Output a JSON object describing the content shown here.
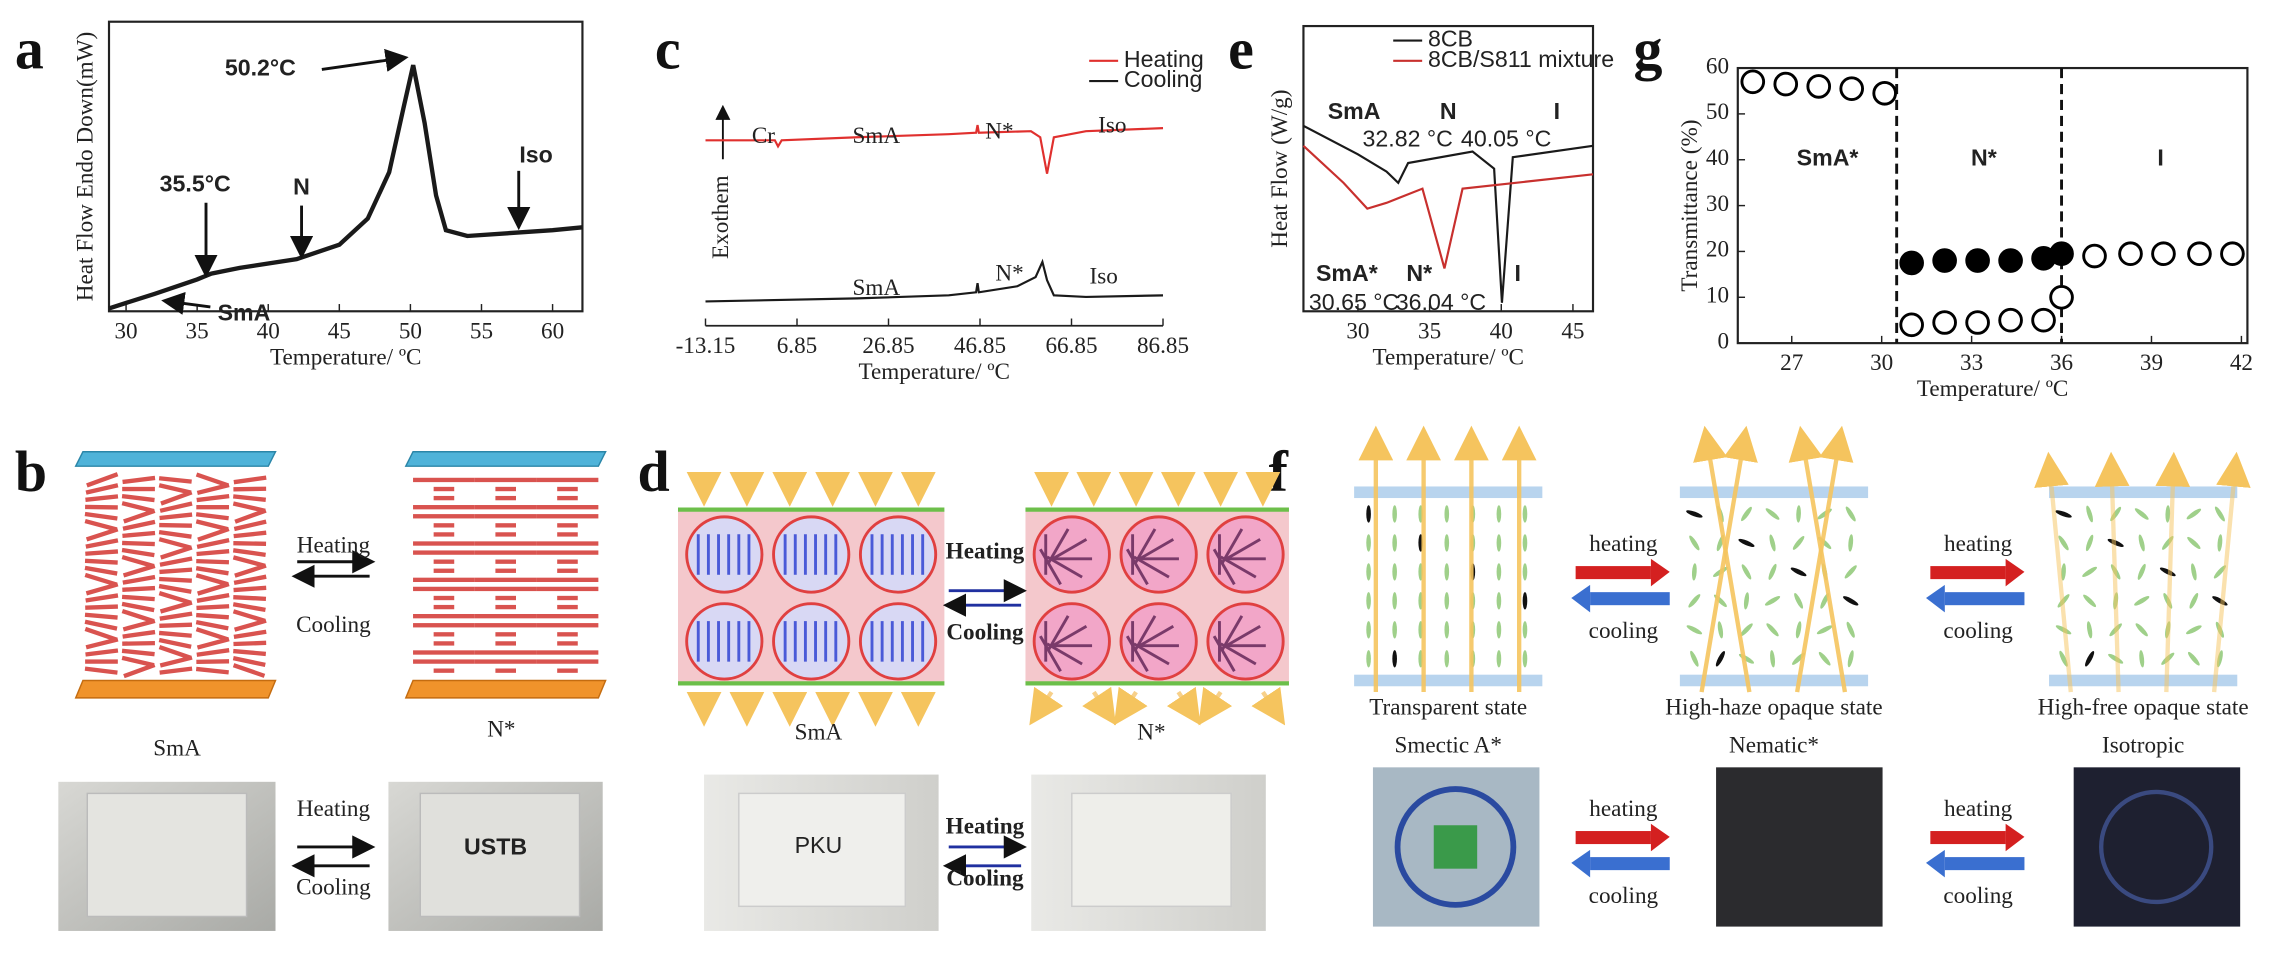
{
  "panel_labels": [
    "a",
    "b",
    "c",
    "d",
    "e",
    "f",
    "g"
  ],
  "chart_data": [
    {
      "type": "line",
      "xlabel": "Temperature/ ºC",
      "ylabel": "Heat Flow Endo Down(mW)",
      "xlim": [
        28.8,
        62.1
      ],
      "xticks": [
        30,
        35,
        40,
        45,
        50,
        55,
        60
      ],
      "ylim": [
        0,
        100
      ],
      "series": [
        {
          "color": "#1a1a1a",
          "x": [
            28.8,
            32,
            35,
            35.5,
            36,
            38,
            42,
            45,
            47,
            48.5,
            49.5,
            50.2,
            51,
            51.8,
            52.5,
            54,
            57,
            60,
            62.1
          ],
          "values": [
            1,
            6,
            11,
            12,
            13,
            15,
            18,
            23,
            32,
            48,
            70,
            85,
            65,
            40,
            28,
            26,
            27,
            28,
            29
          ]
        }
      ],
      "annotations": [
        "50.2°C",
        "35.5°C",
        "N",
        "Iso",
        "SmA"
      ]
    },
    {
      "type": "line",
      "xlabel": "Temperature/ ºC",
      "ylabel": "Exothem",
      "xlim": [
        -13.15,
        86.85
      ],
      "xticks": [
        -13.15,
        6.85,
        26.85,
        46.85,
        66.85,
        86.85
      ],
      "ylim": [
        0,
        100
      ],
      "series": [
        {
          "name": "Heating",
          "color": "#e0302e",
          "x": [
            -13.15,
            2,
            2.7,
            3.5,
            20,
            40,
            46,
            46.3,
            46.6,
            58,
            60,
            61.5,
            63,
            70,
            86.85
          ],
          "values": [
            61,
            61,
            59,
            61,
            62,
            63,
            63.5,
            66,
            63.5,
            64,
            62,
            50,
            62,
            64,
            65
          ]
        },
        {
          "name": "Cooling",
          "color": "#1a1a1a",
          "x": [
            -13.15,
            20,
            40,
            46,
            46.3,
            46.6,
            55,
            59,
            60.5,
            61.5,
            63,
            70,
            86.85
          ],
          "values": [
            8,
            9,
            10,
            11,
            14,
            11,
            13,
            16,
            21,
            15,
            10,
            9.5,
            10
          ]
        }
      ],
      "annotations": [
        "Cr",
        "SmA",
        "N*",
        "Iso",
        "SmA",
        "N*",
        "Iso"
      ]
    },
    {
      "type": "line",
      "xlabel": "Temperature/ ºC",
      "ylabel": "Heat Flow (W/g)",
      "xlim": [
        26.2,
        46.4
      ],
      "xticks": [
        30,
        35,
        40,
        45
      ],
      "ylim": [
        0,
        100
      ],
      "series": [
        {
          "name": "8CB",
          "color": "#1a1a1a",
          "x": [
            26.2,
            30,
            32,
            32.82,
            33.5,
            38,
            39.5,
            40.05,
            40.8,
            46.4
          ],
          "values": [
            65,
            55,
            49,
            45,
            52,
            56,
            50,
            3,
            54,
            58
          ]
        },
        {
          "name": "8CB/S811 mixture",
          "color": "#c8302e",
          "x": [
            26.2,
            29,
            30.65,
            32,
            34.5,
            36.04,
            37.3,
            46.4
          ],
          "values": [
            58,
            45,
            36,
            38,
            43,
            15,
            43,
            48
          ]
        }
      ],
      "annotations": [
        "SmA",
        "N",
        "I",
        "32.82 °C",
        "40.05 °C",
        "SmA*",
        "N*",
        "I",
        "30.65 °C",
        "36.04 °C"
      ]
    },
    {
      "type": "scatter",
      "xlabel": "Temperature/ ºC",
      "ylabel": "Transmittance (%)",
      "xlim": [
        25.2,
        42.2
      ],
      "xticks": [
        27,
        30,
        33,
        36,
        39,
        42
      ],
      "ylim": [
        0,
        60
      ],
      "yticks": [
        0,
        10,
        20,
        30,
        40,
        50,
        60
      ],
      "vlines": [
        30.5,
        36
      ],
      "series": [
        {
          "marker": "open",
          "color": "#000000",
          "x": [
            25.7,
            26.8,
            27.9,
            29,
            30.1
          ],
          "values": [
            57,
            56.5,
            56,
            55.5,
            54.5
          ]
        },
        {
          "marker": "filled",
          "color": "#000000",
          "x": [
            31,
            32.1,
            33.2,
            34.3,
            35.4,
            36
          ],
          "values": [
            17.5,
            18,
            18,
            18,
            18.5,
            19.5
          ]
        },
        {
          "marker": "open",
          "color": "#000000",
          "x": [
            31,
            32.1,
            33.2,
            34.3,
            35.4,
            36
          ],
          "values": [
            4,
            4.5,
            4.5,
            5,
            5,
            10
          ]
        },
        {
          "marker": "open",
          "color": "#000000",
          "x": [
            37.1,
            38.3,
            39.4,
            40.6,
            41.7
          ],
          "values": [
            19,
            19.5,
            19.5,
            19.5,
            19.5
          ]
        }
      ],
      "annotations": [
        "SmA*",
        "N*",
        "I"
      ]
    }
  ],
  "panel_b": {
    "left": "SmA",
    "right": "N*",
    "heating": "Heating",
    "cooling": "Cooling",
    "photo_heating": "Heating",
    "photo_cooling": "Cooling",
    "photo_text": "USTB"
  },
  "panel_d": {
    "left": "SmA",
    "right": "N*",
    "heating": "Heating",
    "cooling": "Cooling",
    "photo_heating": "Heating",
    "photo_cooling": "Cooling",
    "photo_text": "PKU"
  },
  "panel_f": {
    "states": [
      {
        "name": "Transparent state",
        "phase": "Smectic A*"
      },
      {
        "name": "High-haze opaque state",
        "phase": "Nematic*"
      },
      {
        "name": "High-free opaque state",
        "phase": "Isotropic"
      }
    ],
    "arrows": [
      {
        "heating": "heating",
        "cooling": "cooling"
      },
      {
        "heating": "heating",
        "cooling": "cooling"
      },
      {
        "heating": "heating",
        "cooling": "cooling"
      },
      {
        "heating": "heating",
        "cooling": "cooling"
      }
    ]
  }
}
